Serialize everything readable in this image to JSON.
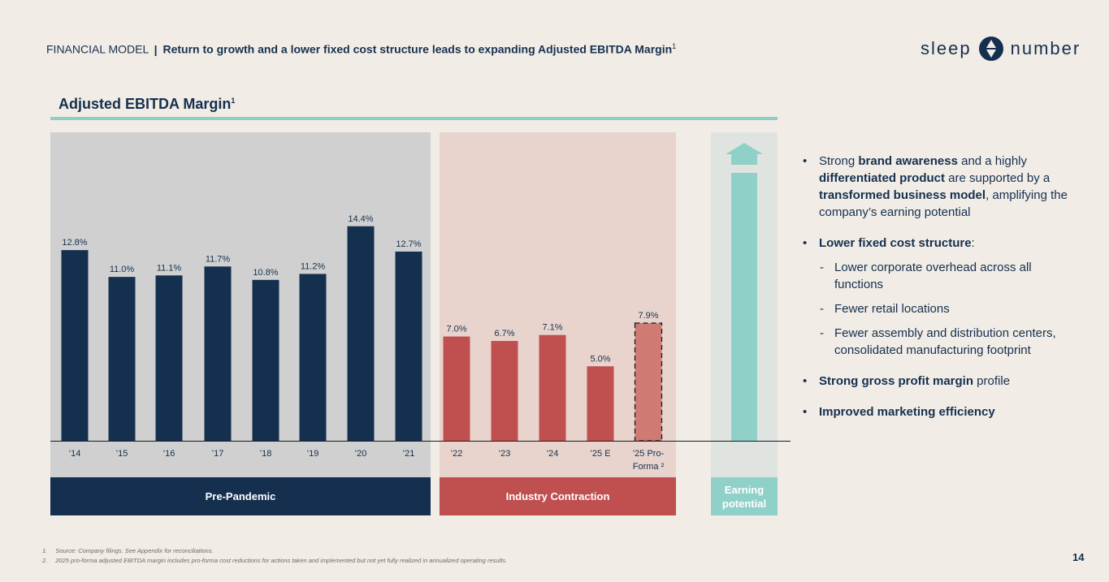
{
  "header": {
    "section": "FINANCIAL MODEL",
    "separator": "|",
    "title": "Return to growth and a lower fixed cost structure leads to expanding Adjusted EBITDA Margin",
    "title_sup": "1"
  },
  "logo": {
    "left": "sleep",
    "right": "number"
  },
  "colors": {
    "navy": "#15304f",
    "red": "#c04f4f",
    "light_red": "#d07a74",
    "teal": "#8fd0c8"
  },
  "chart_data": {
    "type": "bar",
    "title": "Adjusted EBITDA Margin",
    "title_sup": "1",
    "xlabel": "",
    "ylabel": "",
    "ylim": [
      0,
      20
    ],
    "categories": [
      "’14",
      "’15",
      "’16",
      "’17",
      "’18",
      "’19",
      "’20",
      "’21",
      "’22",
      "’23",
      "’24",
      "’25 E",
      "’25 Pro-Forma 2"
    ],
    "category_lines": [
      [
        "’14"
      ],
      [
        "’15"
      ],
      [
        "’16"
      ],
      [
        "’17"
      ],
      [
        "’18"
      ],
      [
        "’19"
      ],
      [
        "’20"
      ],
      [
        "’21"
      ],
      [
        "’22"
      ],
      [
        "’23"
      ],
      [
        "’24"
      ],
      [
        "’25 E"
      ],
      [
        "’25 Pro-",
        "Forma ²"
      ]
    ],
    "values": [
      12.8,
      11.0,
      11.1,
      11.7,
      10.8,
      11.2,
      14.4,
      12.7,
      7.0,
      6.7,
      7.1,
      5.0,
      7.9
    ],
    "labels": [
      "12.8%",
      "11.0%",
      "11.1%",
      "11.7%",
      "10.8%",
      "11.2%",
      "14.4%",
      "12.7%",
      "7.0%",
      "6.7%",
      "7.1%",
      "5.0%",
      "7.9%"
    ],
    "groups": [
      "Pre-Pandemic",
      "Pre-Pandemic",
      "Pre-Pandemic",
      "Pre-Pandemic",
      "Pre-Pandemic",
      "Pre-Pandemic",
      "Pre-Pandemic",
      "Pre-Pandemic",
      "Industry Contraction",
      "Industry Contraction",
      "Industry Contraction",
      "Industry Contraction",
      "Industry Contraction"
    ],
    "styles": [
      "navy",
      "navy",
      "navy",
      "navy",
      "navy",
      "navy",
      "navy",
      "navy",
      "red",
      "red",
      "red",
      "red",
      "pro-forma-dashed"
    ]
  },
  "periods": {
    "pre_pandemic": "Pre-Pandemic",
    "industry_contraction": "Industry Contraction",
    "earning_potential": "Earning potential"
  },
  "bullets": {
    "b1": {
      "t1": "Strong ",
      "bold1": "brand awareness",
      "t2": " and a highly ",
      "bold2": "differentiated product",
      "t3": " are supported by a ",
      "bold3": "transformed business model",
      "t4": ", amplifying the company’s earning potential"
    },
    "b2": {
      "bold": "Lower fixed cost structure",
      "t": ":"
    },
    "subs": [
      "Lower corporate overhead across all functions",
      "Fewer retail locations",
      "Fewer assembly and distribution centers, consolidated manufacturing footprint"
    ],
    "b3": {
      "bold": "Strong gross profit margin",
      "t": " profile"
    },
    "b4": {
      "bold": "Improved marketing efficiency"
    }
  },
  "footnotes": [
    {
      "num": "1.",
      "text": "Source: Company filings. See Appendix for reconciliations."
    },
    {
      "num": "2.",
      "text": "2025 pro-forma adjusted EBITDA margin includes pro-forma cost reductions for actions taken and implemented but not yet fully realized in annualized operating results."
    }
  ],
  "page_number": "14"
}
